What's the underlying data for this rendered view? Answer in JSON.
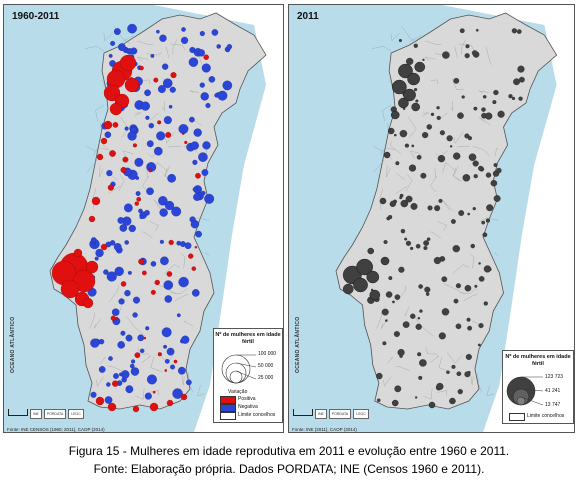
{
  "left_panel": {
    "title": "1960-2011",
    "ocean_label": "OCEANO ATLÂNTICO",
    "legend": {
      "title": "Nº de mulheres em idade fértil",
      "sizes": [
        "100 000",
        "50 000",
        "25 000"
      ],
      "variation_label": "Variação",
      "positive_label": "Positiva",
      "negative_label": "Negativa",
      "limit_label": "Limite concelhos",
      "positive_color": "#e01010",
      "negative_color": "#2b45d8"
    },
    "source": "Fonte: INE CENSOS (1960; 2011), CAOP (2014)",
    "logos": [
      "INE",
      "PORDATA",
      "LEGC"
    ]
  },
  "right_panel": {
    "title": "2011",
    "ocean_label": "OCEANO ATLÂNTICO",
    "legend": {
      "title": "Nº de mulheres em idade fértil",
      "sizes": [
        "123 723",
        "41 241",
        "13 747"
      ],
      "limit_label": "Limite concelhos",
      "circle_color": "#404040"
    },
    "source": "Fonte: INE (2011), CAOP (2014)",
    "logos": [
      "INE",
      "PORDATA",
      "LEGC"
    ]
  },
  "colors": {
    "sea": "#b9dcea",
    "land": "#d9d9d9",
    "spain": "#ffffff"
  },
  "caption": {
    "line1": "Figura 15 - Mulheres em idade reprodutiva em 2011 e evolução entre 1960 e 2011.",
    "line2": "Fonte: Elaboração própria. Dados PORDATA; INE (Censos 1960 e 2011)."
  }
}
